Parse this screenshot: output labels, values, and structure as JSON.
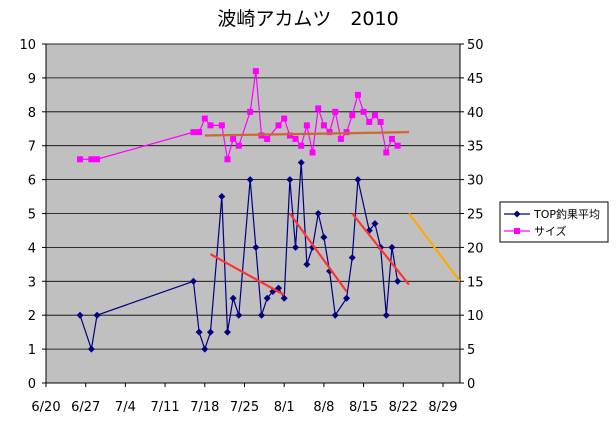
{
  "chart_data": {
    "type": "line",
    "title": "波崎アカムツ　2010",
    "x_ticks": [
      "6/20",
      "6/27",
      "7/4",
      "7/11",
      "7/18",
      "7/25",
      "8/1",
      "8/8",
      "8/15",
      "8/22",
      "8/29"
    ],
    "x_range": [
      "2010-06-20",
      "2010-09-01"
    ],
    "y_left": {
      "min": 0,
      "max": 10,
      "step": 1
    },
    "y_right": {
      "min": 0,
      "max": 50,
      "step": 5
    },
    "legend_position": "right",
    "plot_background": "#c0c0c0",
    "series": [
      {
        "name": "TOP釣果平均",
        "axis": "left",
        "color": "#000080",
        "marker": "diamond",
        "points": [
          [
            "2010-06-26",
            2
          ],
          [
            "2010-06-28",
            1
          ],
          [
            "2010-06-29",
            2
          ],
          [
            "2010-07-16",
            3
          ],
          [
            "2010-07-17",
            1.5
          ],
          [
            "2010-07-18",
            1
          ],
          [
            "2010-07-19",
            1.5
          ],
          [
            "2010-07-21",
            5.5
          ],
          [
            "2010-07-22",
            1.5
          ],
          [
            "2010-07-23",
            2.5
          ],
          [
            "2010-07-24",
            2
          ],
          [
            "2010-07-26",
            6
          ],
          [
            "2010-07-27",
            4
          ],
          [
            "2010-07-28",
            2
          ],
          [
            "2010-07-29",
            2.5
          ],
          [
            "2010-07-30",
            2.7
          ],
          [
            "2010-07-31",
            2.8
          ],
          [
            "2010-08-01",
            2.5
          ],
          [
            "2010-08-02",
            6
          ],
          [
            "2010-08-03",
            4
          ],
          [
            "2010-08-04",
            6.5
          ],
          [
            "2010-08-05",
            3.5
          ],
          [
            "2010-08-06",
            4
          ],
          [
            "2010-08-07",
            5
          ],
          [
            "2010-08-08",
            4.3
          ],
          [
            "2010-08-09",
            3.3
          ],
          [
            "2010-08-10",
            2
          ],
          [
            "2010-08-12",
            2.5
          ],
          [
            "2010-08-13",
            3.7
          ],
          [
            "2010-08-14",
            6
          ],
          [
            "2010-08-16",
            4.5
          ],
          [
            "2010-08-17",
            4.7
          ],
          [
            "2010-08-18",
            4
          ],
          [
            "2010-08-19",
            2
          ],
          [
            "2010-08-20",
            4
          ],
          [
            "2010-08-21",
            3
          ]
        ]
      },
      {
        "name": "サイズ",
        "axis": "right",
        "color": "#ff00ff",
        "marker": "square",
        "points": [
          [
            "2010-06-26",
            33
          ],
          [
            "2010-06-28",
            33
          ],
          [
            "2010-06-29",
            33
          ],
          [
            "2010-07-16",
            37
          ],
          [
            "2010-07-17",
            37
          ],
          [
            "2010-07-18",
            39
          ],
          [
            "2010-07-19",
            38
          ],
          [
            "2010-07-21",
            38
          ],
          [
            "2010-07-22",
            33
          ],
          [
            "2010-07-23",
            36
          ],
          [
            "2010-07-24",
            35
          ],
          [
            "2010-07-26",
            40
          ],
          [
            "2010-07-27",
            46
          ],
          [
            "2010-07-28",
            36.5
          ],
          [
            "2010-07-29",
            36
          ],
          [
            "2010-07-31",
            38
          ],
          [
            "2010-08-01",
            39
          ],
          [
            "2010-08-02",
            36.5
          ],
          [
            "2010-08-03",
            36
          ],
          [
            "2010-08-04",
            35
          ],
          [
            "2010-08-05",
            38
          ],
          [
            "2010-08-06",
            34
          ],
          [
            "2010-08-07",
            40.5
          ],
          [
            "2010-08-08",
            38
          ],
          [
            "2010-08-09",
            37
          ],
          [
            "2010-08-10",
            40
          ],
          [
            "2010-08-11",
            36
          ],
          [
            "2010-08-12",
            37
          ],
          [
            "2010-08-13",
            39.5
          ],
          [
            "2010-08-14",
            42.5
          ],
          [
            "2010-08-15",
            40
          ],
          [
            "2010-08-16",
            38.5
          ],
          [
            "2010-08-17",
            39.5
          ],
          [
            "2010-08-18",
            38.5
          ],
          [
            "2010-08-19",
            34
          ],
          [
            "2010-08-20",
            36
          ],
          [
            "2010-08-21",
            35
          ]
        ]
      }
    ],
    "trendlines": [
      {
        "axis": "right",
        "color": "#cc6633",
        "points": [
          [
            "2010-07-18",
            36.5
          ],
          [
            "2010-08-23",
            37
          ]
        ]
      },
      {
        "axis": "left",
        "color": "#ff3333",
        "points": [
          [
            "2010-07-19",
            3.8
          ],
          [
            "2010-08-01",
            2.6
          ]
        ]
      },
      {
        "axis": "left",
        "color": "#ff3333",
        "points": [
          [
            "2010-08-02",
            5
          ],
          [
            "2010-08-12",
            2.7
          ]
        ]
      },
      {
        "axis": "left",
        "color": "#ff3333",
        "points": [
          [
            "2010-08-13",
            5
          ],
          [
            "2010-08-23",
            2.9
          ]
        ]
      },
      {
        "axis": "left",
        "color": "#ffaa00",
        "points": [
          [
            "2010-08-23",
            5
          ],
          [
            "2010-09-01",
            3
          ]
        ]
      }
    ]
  }
}
